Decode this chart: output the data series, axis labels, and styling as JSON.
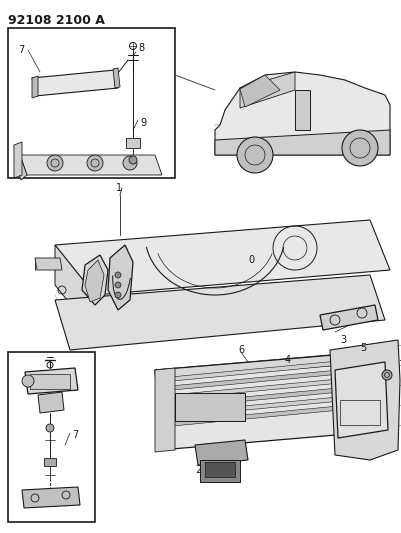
{
  "title": "92108 2100 A",
  "bg_color": "#ffffff",
  "line_color": "#1a1a1a",
  "fig_width": 4.02,
  "fig_height": 5.33,
  "dpi": 100,
  "gray_light": "#cccccc",
  "gray_med": "#aaaaaa",
  "gray_dark": "#888888"
}
